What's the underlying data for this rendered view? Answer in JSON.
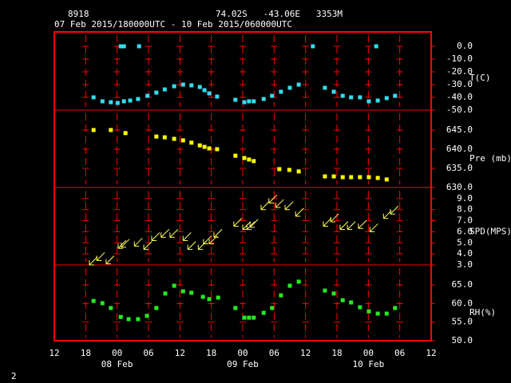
{
  "header": {
    "station": "8918",
    "location": "74.02S   -43.06E   3353M",
    "period": "07 Feb 2015/180000UTC - 10 Feb 2015/060000UTC"
  },
  "footer": "2",
  "chart_data": [
    {
      "type": "scatter",
      "y_label": "T(C)",
      "color": "#33ddee",
      "x": [
        7.5,
        9.2,
        10.8,
        12.1,
        12.7,
        13.3,
        13.3,
        14.5,
        16,
        16.2,
        17.8,
        19.5,
        21.1,
        22.9,
        24.6,
        26.2,
        27.8,
        28.7,
        29.6,
        31.1,
        34.6,
        36.3,
        37.2,
        38.1,
        40,
        41.6,
        43.3,
        45,
        46.7,
        49.4,
        51.7,
        53.4,
        55.1,
        56.7,
        58.4,
        60.1,
        61.5,
        61.8,
        63.5,
        65.1
      ],
      "values": [
        -40,
        -43.1,
        -43.8,
        -44.4,
        0,
        0,
        -43.1,
        -42.5,
        -41.3,
        0,
        -38.8,
        -36.3,
        -33.8,
        -31.3,
        -30,
        -30.6,
        -31.9,
        -34.4,
        -36.9,
        -39.4,
        -41.9,
        -43.8,
        -43.1,
        -43.1,
        -41.3,
        -38.8,
        -35.6,
        -32.5,
        -30,
        0,
        -32.5,
        -35.6,
        -38.8,
        -40,
        -40,
        -43.1,
        0,
        -42.5,
        -40.6,
        -38.8
      ],
      "ylim": [
        -50,
        11.25
      ],
      "yticks": [
        {
          "value": 0,
          "label": "0.0"
        },
        {
          "value": -10,
          "label": "-10.0"
        },
        {
          "value": -20,
          "label": "-20.0"
        },
        {
          "value": -30,
          "label": "-30.0"
        },
        {
          "value": -40,
          "label": "-40.0"
        },
        {
          "value": -50,
          "label": "-50.0"
        }
      ]
    },
    {
      "type": "scatter",
      "y_label": "Pre (mb)",
      "color": "#ffff00",
      "x": [
        7.5,
        10.8,
        13.6,
        19.5,
        21.1,
        22.9,
        24.6,
        26.2,
        27.8,
        28.7,
        29.6,
        31.1,
        34.6,
        36.3,
        37.2,
        38.1,
        43,
        44.9,
        46.7,
        51.7,
        53.4,
        55.1,
        56.7,
        58.4,
        60.1,
        61.8,
        63.5
      ],
      "values": [
        645,
        645,
        644.2,
        643.3,
        643.1,
        642.7,
        642.3,
        641.7,
        641,
        640.6,
        640.2,
        640,
        638.3,
        637.7,
        637.3,
        636.9,
        634.8,
        634.6,
        634.2,
        632.9,
        632.9,
        632.7,
        632.7,
        632.7,
        632.7,
        632.5,
        632.1
      ],
      "ylim": [
        630,
        650.2
      ],
      "yticks": [
        {
          "value": 645,
          "label": "645.0"
        },
        {
          "value": 640,
          "label": "640.0"
        },
        {
          "value": 635,
          "label": "635.0"
        },
        {
          "value": 630,
          "label": "630.0"
        }
      ]
    },
    {
      "type": "wind",
      "y_label": "SPD(MPS)",
      "color": "#ffff55",
      "x": [
        6.7,
        8.1,
        9.9,
        12.2,
        12.8,
        15.3,
        17.1,
        18.6,
        20.4,
        22.1,
        24.6,
        25.5,
        27.5,
        28.5,
        29.6,
        30.5,
        34.3,
        36,
        36.8,
        37.4,
        39.5,
        41,
        42.3,
        44.1,
        46.1,
        51.4,
        52.8,
        54.6,
        56,
        58.1,
        60.3,
        62.9,
        64.2
      ],
      "values": [
        3,
        3.4,
        3.1,
        4.5,
        4.6,
        4.7,
        4.4,
        5.2,
        5.5,
        5.5,
        5.2,
        4.4,
        4.4,
        4.9,
        4.9,
        5.5,
        6.5,
        6.2,
        6.2,
        6.4,
        8,
        8.6,
        8.2,
        8,
        7.4,
        6.5,
        6.9,
        6.2,
        6.2,
        6.3,
        6,
        7.2,
        7.6
      ],
      "ylim": [
        3,
        10
      ],
      "yticks": [
        {
          "value": 9,
          "label": "9.0"
        },
        {
          "value": 8,
          "label": "8.0"
        },
        {
          "value": 7,
          "label": "7.0"
        },
        {
          "value": 6,
          "label": "6.0"
        },
        {
          "value": 5,
          "label": "5.0"
        },
        {
          "value": 4,
          "label": "4.0"
        },
        {
          "value": 3,
          "label": "3.0"
        }
      ]
    },
    {
      "type": "scatter",
      "y_label": "RH(%)",
      "color": "#22ee22",
      "x": [
        7.5,
        9.2,
        10.8,
        12.7,
        14.2,
        16,
        17.7,
        19.5,
        21.2,
        22.9,
        24.6,
        26.2,
        28.4,
        29.6,
        31.3,
        34.6,
        36.3,
        37.2,
        38.1,
        40,
        41.6,
        43.3,
        45,
        46.7,
        51.7,
        53.4,
        55.1,
        56.7,
        58.4,
        60.1,
        61.8,
        63.5,
        65.1
      ],
      "values": [
        60.7,
        60.1,
        58.8,
        56.4,
        55.8,
        55.8,
        56.7,
        58.8,
        62.7,
        64.8,
        63.3,
        62.9,
        61.8,
        61.2,
        61.6,
        58.8,
        56.2,
        56.2,
        56.2,
        57.5,
        58.8,
        62.2,
        64.8,
        65.9,
        63.5,
        62.7,
        60.9,
        60.3,
        59,
        57.9,
        57.3,
        57.3,
        58.8
      ],
      "ylim": [
        50,
        70.4
      ],
      "yticks": [
        {
          "value": 65,
          "label": "65.0"
        },
        {
          "value": 60,
          "label": "60.0"
        },
        {
          "value": 55,
          "label": "55.0"
        },
        {
          "value": 50,
          "label": "50.0"
        }
      ],
      "xlim": [
        0,
        72
      ],
      "xticks": [
        {
          "value": 0,
          "label": "12"
        },
        {
          "value": 6,
          "label": "18"
        },
        {
          "value": 12,
          "label": "00"
        },
        {
          "value": 18,
          "label": "06"
        },
        {
          "value": 24,
          "label": "12"
        },
        {
          "value": 30,
          "label": "18"
        },
        {
          "value": 36,
          "label": "00"
        },
        {
          "value": 42,
          "label": "06"
        },
        {
          "value": 48,
          "label": "12"
        },
        {
          "value": 54,
          "label": "18"
        },
        {
          "value": 60,
          "label": "00"
        },
        {
          "value": 66,
          "label": "06"
        },
        {
          "value": 72,
          "label": "12"
        }
      ],
      "date_labels": [
        {
          "value": 12,
          "label": "08 Feb"
        },
        {
          "value": 36,
          "label": "09 Feb"
        },
        {
          "value": 60,
          "label": "10 Feb"
        }
      ]
    }
  ]
}
